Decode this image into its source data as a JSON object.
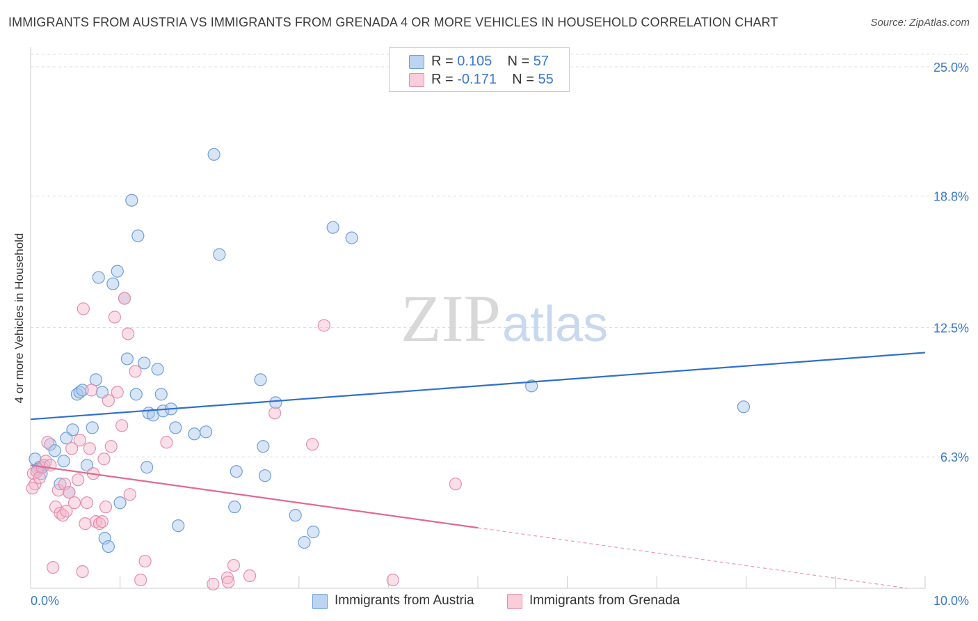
{
  "title": "IMMIGRANTS FROM AUSTRIA VS IMMIGRANTS FROM GRENADA 4 OR MORE VEHICLES IN HOUSEHOLD CORRELATION CHART",
  "source": "Source: ZipAtlas.com",
  "watermark": {
    "zip": "ZIP",
    "atlas": "atlas"
  },
  "legend": {
    "rows": [
      {
        "r_label": "R =",
        "r_value": "0.105",
        "n_label": "N =",
        "n_value": "57"
      },
      {
        "r_label": "R =",
        "r_value": "-0.171",
        "n_label": "N =",
        "n_value": "55"
      }
    ]
  },
  "chart_data": {
    "type": "scatter",
    "title": "IMMIGRANTS FROM AUSTRIA VS IMMIGRANTS FROM GRENADA 4 OR MORE VEHICLES IN HOUSEHOLD CORRELATION CHART",
    "xlabel": "",
    "ylabel": "4 or more Vehicles in Household",
    "xlim": [
      0,
      10
    ],
    "ylim": [
      0,
      25.8
    ],
    "x_tick_labels": [
      "0.0%",
      "10.0%"
    ],
    "y_ticks": [
      6.3,
      12.5,
      18.8,
      25.0
    ],
    "y_tick_labels": [
      "6.3%",
      "12.5%",
      "18.8%",
      "25.0%"
    ],
    "grid": true,
    "series": [
      {
        "name": "Immigrants from Austria",
        "color": "#a9c6ec",
        "edge_color": "#6f9fd8",
        "line_color": "#2f6fcc",
        "trend": {
          "x0": 0,
          "y0": 8.1,
          "x1": 10,
          "y1": 11.3
        },
        "points": [
          [
            0.05,
            6.2
          ],
          [
            0.1,
            5.8
          ],
          [
            0.15,
            5.9
          ],
          [
            0.22,
            6.9
          ],
          [
            0.27,
            6.6
          ],
          [
            0.33,
            5.0
          ],
          [
            0.37,
            6.1
          ],
          [
            0.4,
            7.2
          ],
          [
            0.43,
            4.6
          ],
          [
            0.47,
            7.6
          ],
          [
            0.52,
            9.3
          ],
          [
            0.55,
            9.4
          ],
          [
            0.58,
            9.5
          ],
          [
            0.63,
            5.9
          ],
          [
            0.69,
            7.7
          ],
          [
            0.73,
            10.0
          ],
          [
            0.76,
            14.9
          ],
          [
            0.8,
            9.4
          ],
          [
            0.83,
            2.4
          ],
          [
            0.87,
            2.0
          ],
          [
            0.92,
            14.6
          ],
          [
            0.97,
            15.2
          ],
          [
            1.0,
            4.1
          ],
          [
            1.05,
            13.9
          ],
          [
            1.08,
            11.0
          ],
          [
            1.13,
            18.6
          ],
          [
            1.18,
            9.3
          ],
          [
            1.2,
            16.9
          ],
          [
            1.27,
            10.8
          ],
          [
            1.3,
            5.8
          ],
          [
            1.32,
            8.4
          ],
          [
            1.37,
            8.3
          ],
          [
            1.42,
            10.5
          ],
          [
            1.46,
            9.3
          ],
          [
            1.48,
            8.5
          ],
          [
            1.57,
            8.6
          ],
          [
            1.62,
            7.7
          ],
          [
            1.65,
            3.0
          ],
          [
            1.83,
            7.4
          ],
          [
            1.96,
            7.5
          ],
          [
            2.05,
            20.8
          ],
          [
            2.11,
            16.0
          ],
          [
            2.28,
            3.9
          ],
          [
            2.3,
            5.6
          ],
          [
            2.57,
            10.0
          ],
          [
            2.6,
            6.8
          ],
          [
            2.62,
            5.4
          ],
          [
            2.74,
            8.9
          ],
          [
            2.96,
            3.5
          ],
          [
            3.06,
            2.2
          ],
          [
            3.16,
            2.7
          ],
          [
            3.38,
            17.3
          ],
          [
            3.59,
            16.8
          ],
          [
            5.6,
            9.7
          ],
          [
            7.97,
            8.7
          ],
          [
            0.08,
            5.7
          ],
          [
            0.12,
            5.5
          ]
        ]
      },
      {
        "name": "Immigrants from Grenada",
        "color": "#f6b9cc",
        "edge_color": "#e38fab",
        "line_color": "#e3698f",
        "trend": {
          "x0": 0,
          "y0": 5.9,
          "x1": 5.0,
          "y1": 2.9
        },
        "trend_dashed": {
          "x0": 5.0,
          "y0": 2.9,
          "x1": 9.8,
          "y1": 0.0
        },
        "points": [
          [
            0.03,
            5.5
          ],
          [
            0.05,
            5.0
          ],
          [
            0.07,
            5.6
          ],
          [
            0.1,
            5.3
          ],
          [
            0.13,
            5.8
          ],
          [
            0.17,
            6.1
          ],
          [
            0.19,
            7.0
          ],
          [
            0.22,
            5.9
          ],
          [
            0.25,
            1.0
          ],
          [
            0.28,
            3.9
          ],
          [
            0.31,
            4.7
          ],
          [
            0.33,
            3.6
          ],
          [
            0.36,
            3.5
          ],
          [
            0.38,
            5.0
          ],
          [
            0.4,
            3.7
          ],
          [
            0.43,
            4.6
          ],
          [
            0.46,
            6.7
          ],
          [
            0.49,
            4.1
          ],
          [
            0.53,
            5.2
          ],
          [
            0.55,
            7.1
          ],
          [
            0.58,
            0.8
          ],
          [
            0.59,
            13.4
          ],
          [
            0.61,
            3.1
          ],
          [
            0.63,
            4.1
          ],
          [
            0.66,
            6.7
          ],
          [
            0.68,
            9.5
          ],
          [
            0.7,
            5.5
          ],
          [
            0.73,
            3.2
          ],
          [
            0.77,
            3.1
          ],
          [
            0.8,
            3.2
          ],
          [
            0.82,
            6.2
          ],
          [
            0.84,
            3.9
          ],
          [
            0.87,
            9.0
          ],
          [
            0.9,
            6.8
          ],
          [
            0.94,
            13.0
          ],
          [
            0.97,
            9.4
          ],
          [
            1.02,
            7.8
          ],
          [
            1.05,
            13.9
          ],
          [
            1.09,
            12.2
          ],
          [
            1.11,
            4.5
          ],
          [
            1.17,
            10.4
          ],
          [
            1.23,
            0.4
          ],
          [
            1.28,
            1.3
          ],
          [
            1.52,
            7.0
          ],
          [
            2.04,
            0.2
          ],
          [
            2.2,
            0.5
          ],
          [
            2.21,
            0.3
          ],
          [
            2.27,
            1.1
          ],
          [
            2.45,
            0.6
          ],
          [
            2.73,
            8.4
          ],
          [
            3.15,
            6.9
          ],
          [
            3.28,
            12.6
          ],
          [
            4.05,
            0.4
          ],
          [
            4.75,
            5.0
          ],
          [
            0.02,
            4.8
          ]
        ]
      }
    ]
  },
  "bottom_legend": [
    "Immigrants from Austria",
    "Immigrants from Grenada"
  ]
}
